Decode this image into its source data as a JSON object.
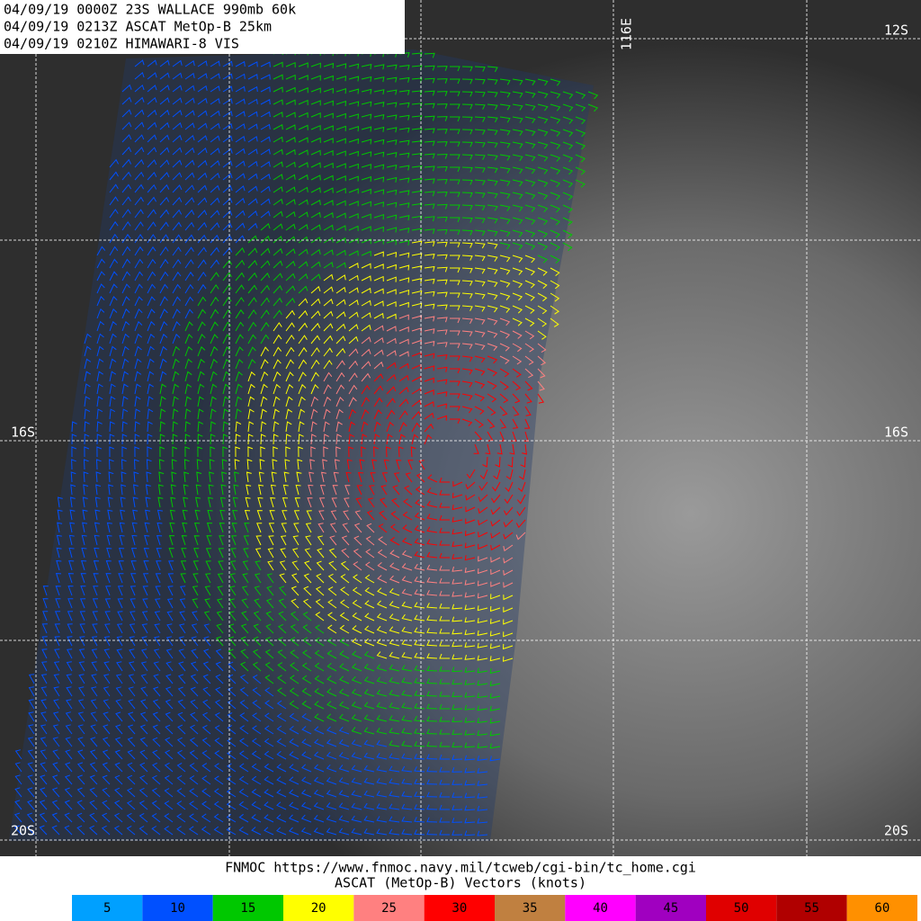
{
  "header": {
    "lines": [
      "04/09/19 0000Z  23S WALLACE 990mb 60k",
      "04/09/19 0213Z  ASCAT MetOp-B 25km",
      "04/09/19 0210Z  HIMAWARI-8 VIS"
    ]
  },
  "grid_labels": {
    "lon": [
      "116E"
    ],
    "lat": [
      "12S",
      "16S",
      "16S",
      "20S",
      "20S"
    ]
  },
  "footer": {
    "source": "FNMOC https://www.fnmoc.navy.mil/tcweb/cgi-bin/tc_home.cgi",
    "legend_title": "ASCAT (MetOp-B) Vectors (knots)"
  },
  "legend": [
    {
      "value": 5,
      "color": "#00a0ff"
    },
    {
      "value": 10,
      "color": "#0050ff"
    },
    {
      "value": 15,
      "color": "#00c800"
    },
    {
      "value": 20,
      "color": "#ffff00"
    },
    {
      "value": 25,
      "color": "#ff8080"
    },
    {
      "value": 30,
      "color": "#ff0000"
    },
    {
      "value": 35,
      "color": "#c08040"
    },
    {
      "value": 40,
      "color": "#ff00ff"
    },
    {
      "value": 45,
      "color": "#a000c0"
    },
    {
      "value": 50,
      "color": "#e00000"
    },
    {
      "value": 55,
      "color": "#b00000"
    },
    {
      "value": 60,
      "color": "#ff9000"
    }
  ]
}
